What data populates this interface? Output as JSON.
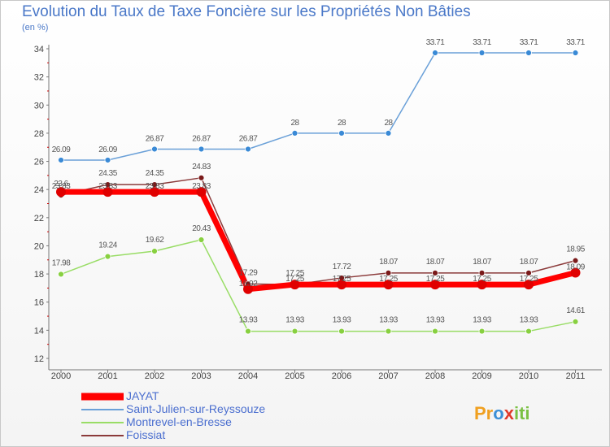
{
  "chart_data": {
    "type": "line",
    "title": "Evolution du Taux de Taxe Foncière sur les Propriétés Non Bâties",
    "ylabel": "(en %)",
    "xlabel": "",
    "ylim": [
      12,
      34
    ],
    "yticks": [
      "12",
      "14",
      "16",
      "18",
      "20",
      "22",
      "24",
      "26",
      "28",
      "30",
      "32",
      "34"
    ],
    "categories": [
      "2000",
      "2001",
      "2002",
      "2003",
      "2004",
      "2005",
      "2006",
      "2007",
      "2008",
      "2009",
      "2010",
      "2011"
    ],
    "series": [
      {
        "name": "JAYAT",
        "color": "#ff0000",
        "values": [
          23.83,
          23.83,
          23.83,
          23.83,
          16.92,
          17.25,
          17.25,
          17.25,
          17.25,
          17.25,
          17.25,
          18.09
        ],
        "labels": [
          "23.83",
          "23.83",
          "23.83",
          "23.83",
          "16.92",
          "17.25",
          "17.25",
          "17.25",
          "17.25",
          "17.25",
          "17.25",
          "18.09"
        ]
      },
      {
        "name": "Saint-Julien-sur-Reyssouze",
        "color": "#6aa0d8",
        "values": [
          26.09,
          26.09,
          26.87,
          26.87,
          26.87,
          28,
          28,
          28,
          33.71,
          33.71,
          33.71,
          33.71
        ],
        "labels": [
          "26.09",
          "26.09",
          "26.87",
          "26.87",
          "26.87",
          "28",
          "28",
          "28",
          "33.71",
          "33.71",
          "33.71",
          "33.71"
        ]
      },
      {
        "name": "Montrevel-en-Bresse",
        "color": "#99dd66",
        "values": [
          17.98,
          19.24,
          19.62,
          20.43,
          13.93,
          13.93,
          13.93,
          13.93,
          13.93,
          13.93,
          13.93,
          14.61
        ],
        "labels": [
          "17.98",
          "19.24",
          "19.62",
          "20.43",
          "13.93",
          "13.93",
          "13.93",
          "13.93",
          "13.93",
          "13.93",
          "13.93",
          "14.61"
        ]
      },
      {
        "name": "Foissiat",
        "color": "#8b3a3a",
        "values": [
          23.6,
          24.35,
          24.35,
          24.83,
          17.29,
          17.25,
          17.72,
          18.07,
          18.07,
          18.07,
          18.07,
          18.95
        ],
        "labels": [
          "23.6",
          "24.35",
          "24.35",
          "24.83",
          "17.29",
          "17.25",
          "17.72",
          "18.07",
          "18.07",
          "18.07",
          "18.07",
          "18.95"
        ]
      }
    ],
    "legend_position": "bottom-left",
    "grid": false
  },
  "brand": {
    "part1": "Pr",
    "part2": "o",
    "part3": "x",
    "part4": "iti"
  }
}
